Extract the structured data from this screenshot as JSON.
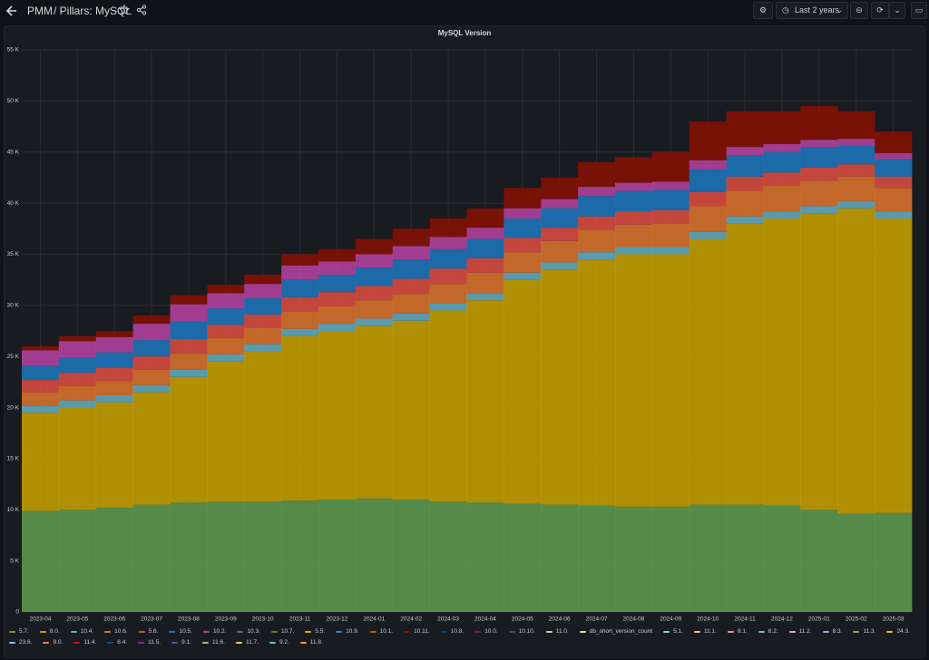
{
  "header": {
    "title": "PMM",
    "breadcrumb": "/ Pillars: MySQL",
    "time_range": "Last 2 years"
  },
  "chart_data": {
    "type": "stacked-bar",
    "title": "MySQL Version",
    "x": [
      "2023-04",
      "2023-05",
      "2023-06",
      "2023-07",
      "2023-08",
      "2023-09",
      "2023-10",
      "2023-11",
      "2023-12",
      "2024-01",
      "2024-02",
      "2024-03",
      "2024-04",
      "2024-05",
      "2024-06",
      "2024-07",
      "2024-08",
      "2024-09",
      "2024-10",
      "2024-11",
      "2024-12",
      "2025-01",
      "2025-02",
      "2025-03"
    ],
    "ylim": [
      0,
      55000
    ],
    "yticks": [
      0,
      {
        "value": 5000,
        "label": "5 K"
      },
      {
        "value": 10000,
        "label": "10 K"
      },
      {
        "value": 15000,
        "label": "15 K"
      },
      {
        "value": 20000,
        "label": "20 K"
      },
      {
        "value": 25000,
        "label": "25 K"
      },
      {
        "value": 30000,
        "label": "30 K"
      },
      {
        "value": 35000,
        "label": "35 K"
      },
      {
        "value": 40000,
        "label": "40 K"
      },
      {
        "value": 45000,
        "label": "45 K"
      },
      {
        "value": 50000,
        "label": "50 K"
      },
      {
        "value": 55000,
        "label": "55 K"
      }
    ],
    "grid": true,
    "series": [
      {
        "name": "5.7.",
        "color": "#629e51",
        "values": [
          9900,
          10000,
          10200,
          10500,
          10700,
          10800,
          10800,
          10900,
          11000,
          11100,
          11000,
          10800,
          10700,
          10600,
          10500,
          10400,
          10300,
          10300,
          10500,
          10500,
          10400,
          10000,
          9600,
          9700
        ]
      },
      {
        "name": "8.0.",
        "color": "#cca300",
        "values": [
          9600,
          10000,
          10300,
          11000,
          12300,
          13700,
          14700,
          16100,
          16500,
          16900,
          17500,
          18700,
          19800,
          21900,
          23000,
          24100,
          24700,
          24700,
          26000,
          27500,
          28100,
          29000,
          29900,
          28800
        ]
      },
      {
        "name": "10.4.",
        "color": "#64b0c8",
        "values": [
          700,
          700,
          700,
          700,
          700,
          700,
          700,
          700,
          700,
          700,
          700,
          700,
          700,
          700,
          700,
          700,
          700,
          700,
          700,
          700,
          700,
          700,
          700,
          700
        ]
      },
      {
        "name": "10.6.",
        "color": "#e0752d",
        "values": [
          1300,
          1400,
          1400,
          1500,
          1600,
          1600,
          1600,
          1700,
          1700,
          1800,
          1900,
          1900,
          2000,
          2000,
          2100,
          2200,
          2200,
          2300,
          2500,
          2500,
          2500,
          2500,
          2400,
          2300
        ]
      },
      {
        "name": "5.6.",
        "color": "#e24d42",
        "values": [
          1200,
          1300,
          1300,
          1300,
          1400,
          1300,
          1300,
          1400,
          1400,
          1400,
          1500,
          1500,
          1400,
          1400,
          1300,
          1300,
          1300,
          1300,
          1400,
          1400,
          1300,
          1300,
          1200,
          1100
        ]
      },
      {
        "name": "10.5.",
        "color": "#1f78c1",
        "values": [
          1400,
          1500,
          1500,
          1600,
          1700,
          1600,
          1600,
          1700,
          1700,
          1800,
          1900,
          1900,
          1900,
          1900,
          1900,
          2000,
          2000,
          2000,
          2200,
          2100,
          2000,
          2000,
          1800,
          1700
        ]
      },
      {
        "name": "10.2.",
        "color": "#ba43a6",
        "values": [
          1500,
          1600,
          1500,
          1600,
          1700,
          1500,
          1400,
          1400,
          1300,
          1300,
          1300,
          1200,
          1100,
          1000,
          900,
          900,
          800,
          800,
          900,
          800,
          800,
          700,
          700,
          600
        ]
      },
      {
        "name": "10.3.",
        "color": "#705da0",
        "values": [
          0,
          0,
          0,
          0,
          0,
          0,
          0,
          0,
          0,
          0,
          0,
          0,
          0,
          0,
          0,
          0,
          0,
          0,
          0,
          0,
          0,
          0,
          0,
          0
        ]
      },
      {
        "name": "10.7.",
        "color": "#508642",
        "values": [
          0,
          0,
          0,
          0,
          0,
          0,
          0,
          0,
          0,
          0,
          0,
          0,
          0,
          0,
          0,
          0,
          0,
          0,
          0,
          0,
          0,
          0,
          0,
          0
        ]
      },
      {
        "name": "5.5.",
        "color": "#e5ac0e",
        "values": [
          0,
          0,
          0,
          0,
          0,
          0,
          0,
          0,
          0,
          0,
          0,
          0,
          0,
          0,
          0,
          0,
          0,
          0,
          0,
          0,
          0,
          0,
          0,
          0
        ]
      },
      {
        "name": "10.9.",
        "color": "#447ebc",
        "values": [
          0,
          0,
          0,
          0,
          0,
          0,
          0,
          0,
          0,
          0,
          0,
          0,
          0,
          0,
          0,
          0,
          0,
          0,
          0,
          0,
          0,
          0,
          0,
          0
        ]
      },
      {
        "name": "10.1.",
        "color": "#c15c17",
        "values": [
          0,
          0,
          0,
          0,
          0,
          0,
          0,
          0,
          0,
          0,
          0,
          0,
          0,
          0,
          0,
          0,
          0,
          0,
          0,
          0,
          0,
          0,
          0,
          0
        ]
      },
      {
        "name": "10.11.",
        "color": "#890f02",
        "values": [
          400,
          500,
          600,
          800,
          900,
          800,
          900,
          1100,
          1200,
          1500,
          1700,
          1800,
          1900,
          2000,
          2100,
          2400,
          2500,
          2900,
          3800,
          3500,
          3200,
          3300,
          2700,
          2100
        ]
      },
      {
        "name": "10.8.",
        "color": "#0a437c",
        "values": [
          0,
          0,
          0,
          0,
          0,
          0,
          0,
          0,
          0,
          0,
          0,
          0,
          0,
          0,
          0,
          0,
          0,
          0,
          0,
          0,
          0,
          0,
          0,
          0
        ]
      },
      {
        "name": "10.0.",
        "color": "#6d1f62",
        "values": [
          0,
          0,
          0,
          0,
          0,
          0,
          0,
          0,
          0,
          0,
          0,
          0,
          0,
          0,
          0,
          0,
          0,
          0,
          0,
          0,
          0,
          0,
          0,
          0
        ]
      },
      {
        "name": "10.10.",
        "color": "#584477",
        "values": [
          0,
          0,
          0,
          0,
          0,
          0,
          0,
          0,
          0,
          0,
          0,
          0,
          0,
          0,
          0,
          0,
          0,
          0,
          0,
          0,
          0,
          0,
          0,
          0
        ]
      },
      {
        "name": "11.0.",
        "color": "#b7dbab",
        "values": [
          0,
          0,
          0,
          0,
          0,
          0,
          0,
          0,
          0,
          0,
          0,
          0,
          0,
          0,
          0,
          0,
          0,
          0,
          0,
          0,
          0,
          0,
          0,
          0
        ]
      },
      {
        "name": "db_short_version_count",
        "color": "#f4d598",
        "values": [
          0,
          0,
          0,
          0,
          0,
          0,
          0,
          0,
          0,
          0,
          0,
          0,
          0,
          0,
          0,
          0,
          0,
          0,
          0,
          0,
          0,
          0,
          0,
          0
        ]
      },
      {
        "name": "5.1.",
        "color": "#70dbed",
        "values": [
          0,
          0,
          0,
          0,
          0,
          0,
          0,
          0,
          0,
          0,
          0,
          0,
          0,
          0,
          0,
          0,
          0,
          0,
          0,
          0,
          0,
          0,
          0,
          0
        ]
      },
      {
        "name": "11.1.",
        "color": "#f9ba8f",
        "values": [
          0,
          0,
          0,
          0,
          0,
          0,
          0,
          0,
          0,
          0,
          0,
          0,
          0,
          0,
          0,
          0,
          0,
          0,
          0,
          0,
          0,
          0,
          0,
          0
        ]
      },
      {
        "name": "8.1.",
        "color": "#f29191",
        "values": [
          0,
          0,
          0,
          0,
          0,
          0,
          0,
          0,
          0,
          0,
          0,
          0,
          0,
          0,
          0,
          0,
          0,
          0,
          0,
          0,
          0,
          0,
          0,
          0
        ]
      },
      {
        "name": "8.2.",
        "color": "#82b5d8",
        "values": [
          0,
          0,
          0,
          0,
          0,
          0,
          0,
          0,
          0,
          0,
          0,
          0,
          0,
          0,
          0,
          0,
          0,
          0,
          0,
          0,
          0,
          0,
          0,
          0
        ]
      },
      {
        "name": "11.2.",
        "color": "#e5a8e2",
        "values": [
          0,
          0,
          0,
          0,
          0,
          0,
          0,
          0,
          0,
          0,
          0,
          0,
          0,
          0,
          0,
          0,
          0,
          0,
          0,
          0,
          0,
          0,
          0,
          0
        ]
      },
      {
        "name": "8.3.",
        "color": "#aea2e0",
        "values": [
          0,
          0,
          0,
          0,
          0,
          0,
          0,
          0,
          0,
          0,
          0,
          0,
          0,
          0,
          0,
          0,
          0,
          0,
          0,
          0,
          0,
          0,
          0,
          0
        ]
      },
      {
        "name": "11.3.",
        "color": "#7eb26d",
        "values": [
          0,
          0,
          0,
          0,
          0,
          0,
          0,
          0,
          0,
          0,
          0,
          0,
          0,
          0,
          0,
          0,
          0,
          0,
          0,
          0,
          0,
          0,
          0,
          0
        ]
      },
      {
        "name": "24.3.",
        "color": "#eab839",
        "values": [
          0,
          0,
          0,
          0,
          0,
          0,
          0,
          0,
          0,
          0,
          0,
          0,
          0,
          0,
          0,
          0,
          0,
          0,
          0,
          0,
          0,
          0,
          0,
          0
        ]
      },
      {
        "name": "23.6.",
        "color": "#6ed0e0",
        "values": [
          0,
          0,
          0,
          0,
          0,
          0,
          0,
          0,
          0,
          0,
          0,
          0,
          0,
          0,
          0,
          0,
          0,
          0,
          0,
          0,
          0,
          0,
          0,
          0
        ]
      },
      {
        "name": "9.0.",
        "color": "#ef843c",
        "values": [
          0,
          0,
          0,
          0,
          0,
          0,
          0,
          0,
          0,
          0,
          0,
          0,
          0,
          0,
          0,
          0,
          0,
          0,
          0,
          0,
          0,
          0,
          0,
          0
        ]
      },
      {
        "name": "11.4.",
        "color": "#bf1b00",
        "values": [
          0,
          0,
          0,
          0,
          0,
          0,
          0,
          0,
          0,
          0,
          0,
          0,
          0,
          0,
          0,
          0,
          0,
          0,
          0,
          0,
          0,
          0,
          0,
          0
        ]
      },
      {
        "name": "8.4.",
        "color": "#0a50a1",
        "values": [
          0,
          0,
          0,
          0,
          0,
          0,
          0,
          0,
          0,
          0,
          0,
          0,
          0,
          0,
          0,
          0,
          0,
          0,
          0,
          0,
          0,
          0,
          0,
          0
        ]
      },
      {
        "name": "11.5.",
        "color": "#962d82",
        "values": [
          0,
          0,
          0,
          0,
          0,
          0,
          0,
          0,
          0,
          0,
          0,
          0,
          0,
          0,
          0,
          0,
          0,
          0,
          0,
          0,
          0,
          0,
          0,
          0
        ]
      },
      {
        "name": "9.1.",
        "color": "#614d93",
        "values": [
          0,
          0,
          0,
          0,
          0,
          0,
          0,
          0,
          0,
          0,
          0,
          0,
          0,
          0,
          0,
          0,
          0,
          0,
          0,
          0,
          0,
          0,
          0,
          0
        ]
      },
      {
        "name": "11.6.",
        "color": "#9ac48a",
        "values": [
          0,
          0,
          0,
          0,
          0,
          0,
          0,
          0,
          0,
          0,
          0,
          0,
          0,
          0,
          0,
          0,
          0,
          0,
          0,
          0,
          0,
          0,
          0,
          0
        ]
      },
      {
        "name": "11.7.",
        "color": "#f2c96d",
        "values": [
          0,
          0,
          0,
          0,
          0,
          0,
          0,
          0,
          0,
          0,
          0,
          0,
          0,
          0,
          0,
          0,
          0,
          0,
          0,
          0,
          0,
          0,
          0,
          0
        ]
      },
      {
        "name": "9.2.",
        "color": "#65c5db",
        "values": [
          0,
          0,
          0,
          0,
          0,
          0,
          0,
          0,
          0,
          0,
          0,
          0,
          0,
          0,
          0,
          0,
          0,
          0,
          0,
          0,
          0,
          0,
          0,
          0
        ]
      },
      {
        "name": "11.8.",
        "color": "#f9934e",
        "values": [
          0,
          0,
          0,
          0,
          0,
          0,
          0,
          0,
          0,
          0,
          0,
          0,
          0,
          0,
          0,
          0,
          0,
          0,
          0,
          0,
          0,
          0,
          0,
          0
        ]
      }
    ]
  }
}
